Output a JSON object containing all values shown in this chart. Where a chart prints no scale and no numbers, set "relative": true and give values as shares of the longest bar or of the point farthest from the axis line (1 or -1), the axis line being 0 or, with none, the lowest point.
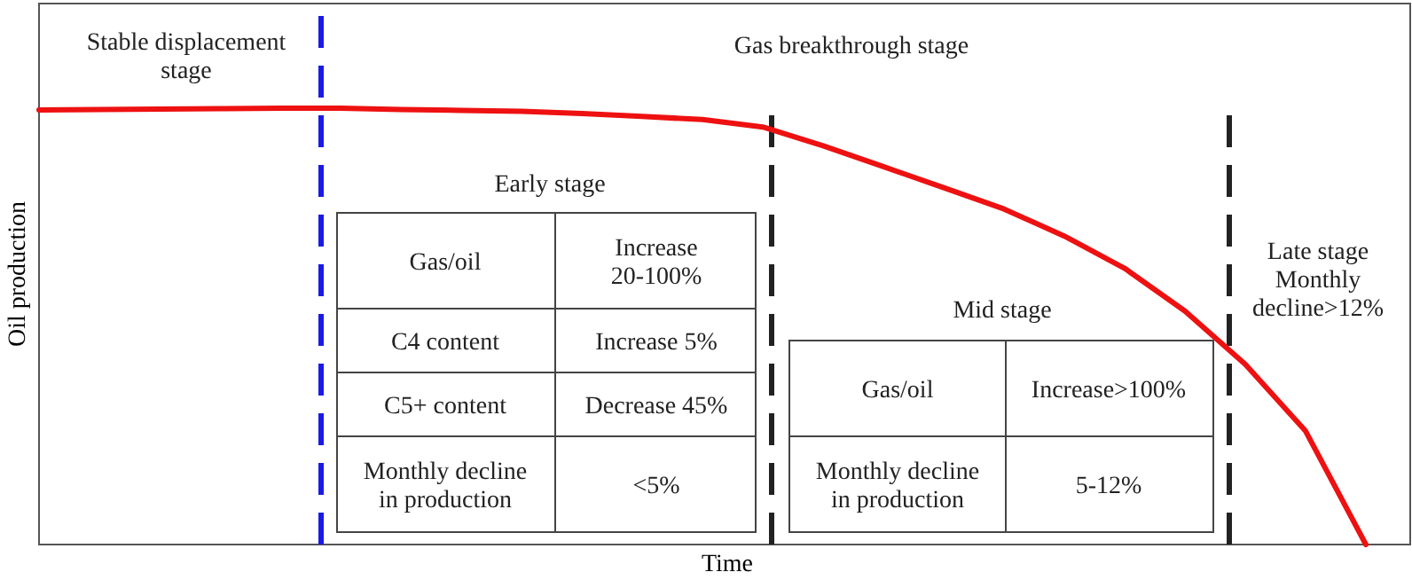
{
  "chart_data": {
    "type": "line",
    "relative": true,
    "xlabel": "Time",
    "ylabel": "Oil production",
    "marker": "none",
    "line_style": "solid",
    "categories": [
      null,
      null,
      null,
      null,
      null,
      null,
      null,
      null,
      null,
      null,
      null,
      null,
      null,
      null,
      null,
      null,
      null,
      null,
      null,
      null,
      null,
      null,
      null
    ],
    "series": [
      {
        "color": "#ee1111",
        "values": [
          0.996,
          0.997,
          0.998,
          0.999,
          1,
          1,
          0.997,
          0.995,
          0.993,
          0.988,
          0.981,
          0.974,
          0.957,
          0.914,
          0.866,
          0.818,
          0.769,
          0.707,
          0.633,
          0.535,
          0.413,
          0.26,
          0
        ]
      }
    ],
    "annotations": [
      "Stable displacement stage",
      "Gas breakthrough stage",
      "Early stage",
      "Mid stage",
      "Late stage Monthly decline>12%",
      "Gas/oil",
      "Increase 20-100%",
      "C4 content",
      "Increase 5%",
      "C5+ content",
      "Decrease 45%",
      "Monthly decline in production",
      "<5%",
      "Gas/oil",
      "Increase>100%",
      "Monthly decline in production",
      "5-12%"
    ]
  }
}
